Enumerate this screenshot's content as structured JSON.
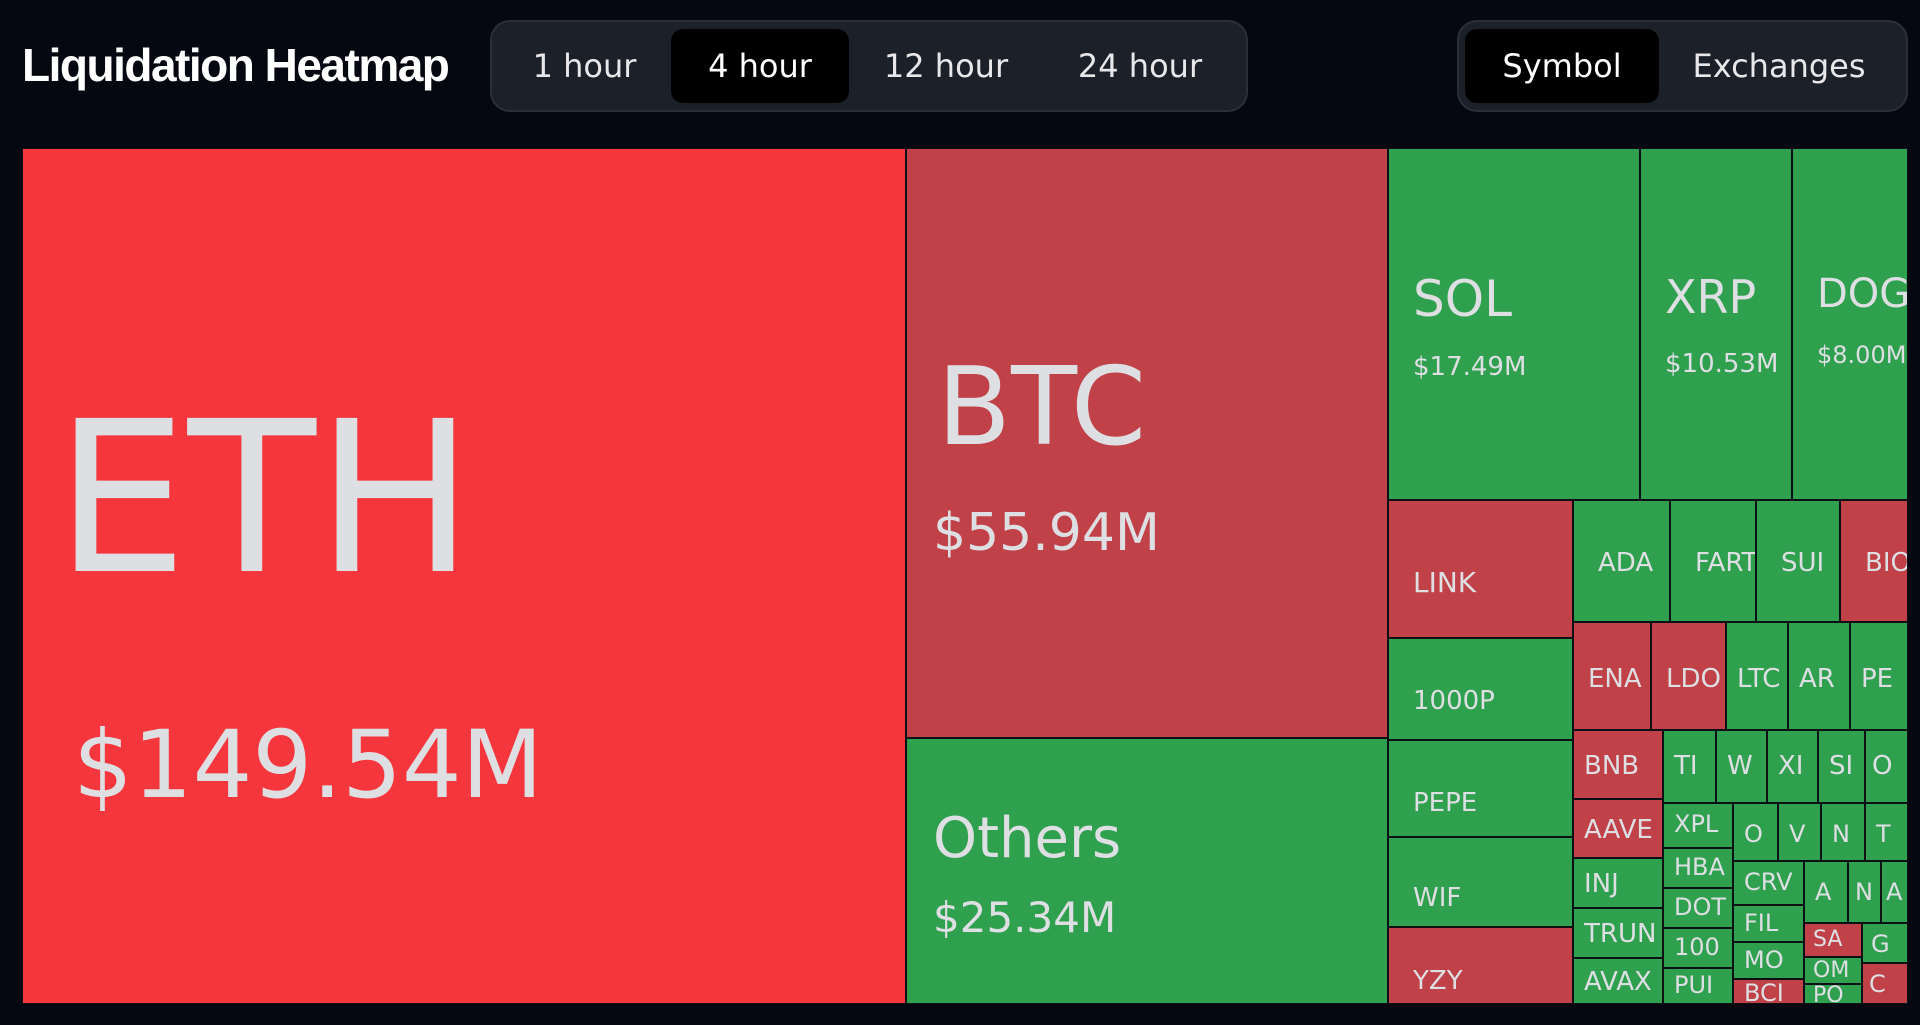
{
  "header": {
    "title": "Liquidation Heatmap",
    "time_options": [
      {
        "label": "1 hour",
        "active": false
      },
      {
        "label": "4 hour",
        "active": true
      },
      {
        "label": "12 hour",
        "active": false
      },
      {
        "label": "24 hour",
        "active": false
      }
    ],
    "view_options": [
      {
        "label": "Symbol",
        "active": true
      },
      {
        "label": "Exchanges",
        "active": false
      }
    ]
  },
  "colors": {
    "background": "#050810",
    "tile_bright_red": "#f5363d",
    "tile_dark_red": "#c04147",
    "tile_green": "#2fa04e",
    "active_tab": "#000000",
    "segment_bg": "#1c2028"
  },
  "heatmap": {
    "tiles": [
      {
        "symbol": "ETH",
        "value": "$149.54M",
        "color": "red"
      },
      {
        "symbol": "BTC",
        "value": "$55.94M",
        "color": "dred"
      },
      {
        "symbol": "Others",
        "value": "$25.34M",
        "color": "green"
      },
      {
        "symbol": "SOL",
        "value": "$17.49M",
        "color": "green"
      },
      {
        "symbol": "XRP",
        "value": "$10.53M",
        "color": "green"
      },
      {
        "symbol": "DOG",
        "value": "$8.00M",
        "color": "green"
      },
      {
        "symbol": "LINK",
        "color": "dred"
      },
      {
        "symbol": "ADA",
        "color": "green"
      },
      {
        "symbol": "FARTCOIN",
        "color": "green"
      },
      {
        "symbol": "SUI",
        "color": "green"
      },
      {
        "symbol": "BIO",
        "color": "dred"
      },
      {
        "symbol": "1000P",
        "color": "green"
      },
      {
        "symbol": "PEPE",
        "color": "green"
      },
      {
        "symbol": "WIF",
        "color": "green"
      },
      {
        "symbol": "YZY",
        "color": "dred"
      },
      {
        "symbol": "ENA",
        "color": "dred"
      },
      {
        "symbol": "LDO",
        "color": "dred"
      },
      {
        "symbol": "LTC",
        "color": "green"
      },
      {
        "symbol": "AR",
        "color": "green"
      },
      {
        "symbol": "PE",
        "color": "green"
      },
      {
        "symbol": "BNB",
        "color": "dred"
      },
      {
        "symbol": "AAVE",
        "color": "dred"
      },
      {
        "symbol": "INJ",
        "color": "green"
      },
      {
        "symbol": "TRUN",
        "color": "green"
      },
      {
        "symbol": "AVAX",
        "color": "green"
      },
      {
        "symbol": "TI",
        "color": "green"
      },
      {
        "symbol": "W",
        "color": "green"
      },
      {
        "symbol": "XI",
        "color": "green"
      },
      {
        "symbol": "SI",
        "color": "green"
      },
      {
        "symbol": "O",
        "color": "green"
      },
      {
        "symbol": "XPL",
        "color": "green"
      },
      {
        "symbol": "HBA",
        "color": "green"
      },
      {
        "symbol": "DOT",
        "color": "green"
      },
      {
        "symbol": "100",
        "color": "green"
      },
      {
        "symbol": "PUI",
        "color": "green"
      },
      {
        "symbol": "O",
        "color": "green"
      },
      {
        "symbol": "V",
        "color": "green"
      },
      {
        "symbol": "N",
        "color": "green"
      },
      {
        "symbol": "T",
        "color": "green"
      },
      {
        "symbol": "CRV",
        "color": "green"
      },
      {
        "symbol": "FIL",
        "color": "green"
      },
      {
        "symbol": "MO",
        "color": "green"
      },
      {
        "symbol": "BCI",
        "color": "dred"
      },
      {
        "symbol": "A",
        "color": "green"
      },
      {
        "symbol": "N",
        "color": "green"
      },
      {
        "symbol": "A",
        "color": "green"
      },
      {
        "symbol": "SA",
        "color": "dred"
      },
      {
        "symbol": "OM",
        "color": "green"
      },
      {
        "symbol": "PO",
        "color": "green"
      },
      {
        "symbol": "G",
        "color": "green"
      },
      {
        "symbol": "C",
        "color": "dred"
      }
    ]
  }
}
